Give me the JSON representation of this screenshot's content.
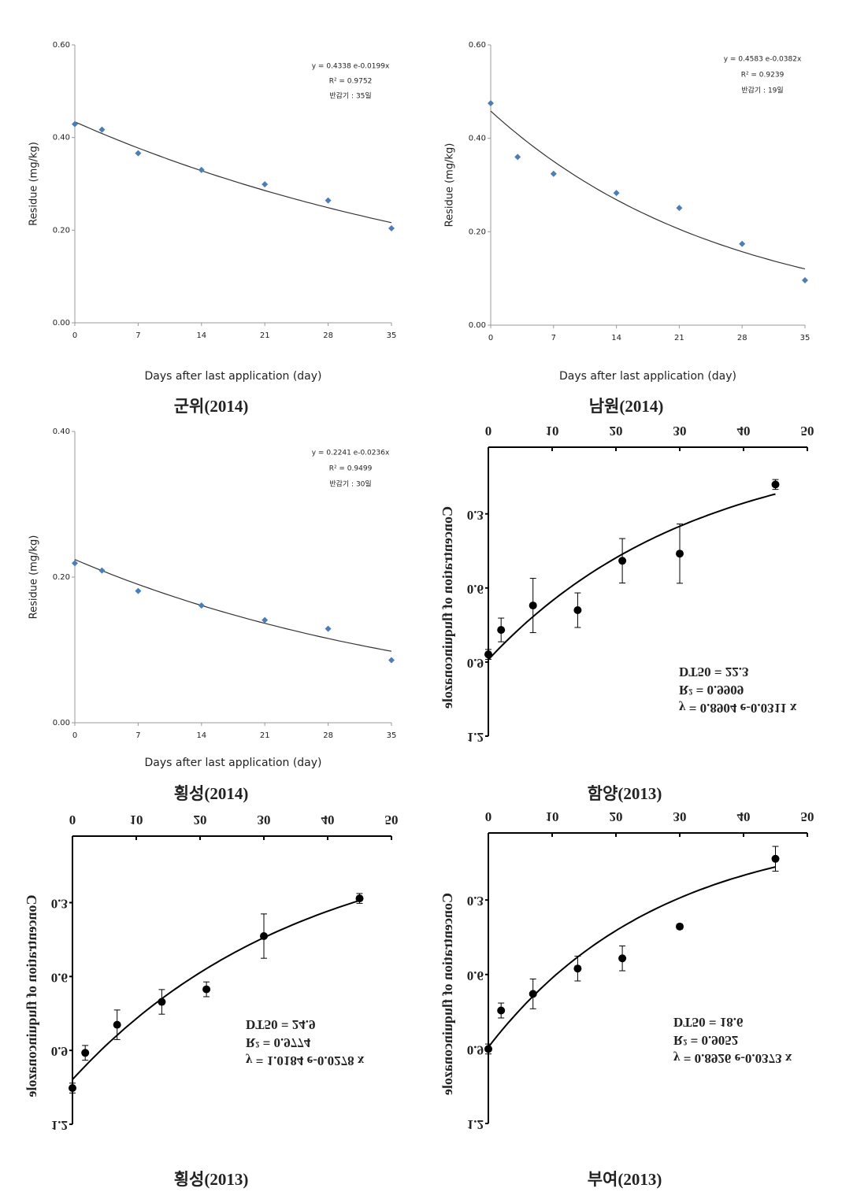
{
  "chart_data": [
    {
      "type": "scatter",
      "caption": "군위(2014)",
      "ylabel": "Residue (mg/kg)",
      "xlabel": "Days after last application (day)",
      "x": [
        0,
        3,
        7,
        14,
        21,
        28,
        35
      ],
      "values": [
        0.429,
        0.417,
        0.366,
        0.33,
        0.299,
        0.264,
        0.204
      ],
      "xlim": [
        0,
        35
      ],
      "ylim": [
        0,
        0.6
      ],
      "xticks": [
        0,
        7,
        14,
        21,
        28,
        35
      ],
      "yticks": [
        {
          "value": 0,
          "label": "0.00"
        },
        {
          "value": 0.2,
          "label": "0.20"
        },
        {
          "value": 0.4,
          "label": "0.40"
        },
        {
          "value": 0.6,
          "label": "0.60"
        }
      ],
      "marker": "diamond",
      "color": "#4a7ebb",
      "fit": {
        "a": 0.4338,
        "b": -0.0199
      },
      "annotations": [
        "y = 0.4338 e-0.0199x",
        "R² = 0.9752",
        "반감기 : 35일"
      ]
    },
    {
      "type": "scatter",
      "caption": "남원(2014)",
      "ylabel": "Residue (mg/kg)",
      "xlabel": "Days after last application (day)",
      "x": [
        0,
        3,
        7,
        14,
        21,
        28,
        35
      ],
      "values": [
        0.475,
        0.36,
        0.324,
        0.283,
        0.251,
        0.174,
        0.096
      ],
      "xlim": [
        0,
        35
      ],
      "ylim": [
        0,
        0.6
      ],
      "xticks": [
        0,
        7,
        14,
        21,
        28,
        35
      ],
      "yticks": [
        {
          "value": 0,
          "label": "0.00"
        },
        {
          "value": 0.2,
          "label": "0.20"
        },
        {
          "value": 0.4,
          "label": "0.40"
        },
        {
          "value": 0.6,
          "label": "0.60"
        }
      ],
      "marker": "diamond",
      "color": "#4a7ebb",
      "fit": {
        "a": 0.4583,
        "b": -0.0382
      },
      "annotations": [
        "y = 0.4583 e-0.0382x",
        "R² = 0.9239",
        "반감기 : 19일"
      ]
    },
    {
      "type": "scatter",
      "caption": "횡성(2014)",
      "ylabel": "Residue (mg/kg)",
      "xlabel": "Days after last application (day)",
      "x": [
        0,
        3,
        7,
        14,
        21,
        28,
        35
      ],
      "values": [
        0.219,
        0.209,
        0.181,
        0.161,
        0.141,
        0.129,
        0.086
      ],
      "xlim": [
        0,
        35
      ],
      "ylim": [
        0,
        0.4
      ],
      "xticks": [
        0,
        7,
        14,
        21,
        28,
        35
      ],
      "yticks": [
        {
          "value": 0,
          "label": "0.00"
        },
        {
          "value": 0.2,
          "label": "0.20"
        },
        {
          "value": 0.4,
          "label": "0.40"
        }
      ],
      "marker": "diamond",
      "color": "#4a7ebb",
      "fit": {
        "a": 0.2241,
        "b": -0.0236
      },
      "annotations": [
        "y = 0.2241 e-0.0236x",
        "R² = 0.9499",
        "반감기 : 30일"
      ]
    },
    {
      "type": "scatter",
      "caption": "함양(2013)",
      "ylabel": "Concentration of fluquinconazole",
      "x": [
        0,
        2,
        7,
        14,
        21,
        30,
        45
      ],
      "values": [
        0.869,
        0.77,
        0.671,
        0.69,
        0.49,
        0.461,
        0.181
      ],
      "errors": [
        0.02,
        0.048,
        0.11,
        0.07,
        0.09,
        0.12,
        0.02
      ],
      "xlim": [
        0,
        50
      ],
      "ylim": [
        0.03,
        1.2
      ],
      "xticks": [
        0,
        10,
        20,
        30,
        40,
        50
      ],
      "yticks": [
        0.3,
        0.6,
        0.9,
        1.2
      ],
      "inverted_y": true,
      "x_axis_position": "top",
      "text_flipped": true,
      "marker": "circle",
      "color": "#000000",
      "fit": {
        "a": 0.8904,
        "b": -0.0311
      },
      "annotations": [
        "DT50 = 22.3",
        "R² = 0.9909",
        "y = 0.8904 e-0.0311 x"
      ]
    },
    {
      "type": "scatter",
      "caption": "횡성(2013)",
      "ylabel": "Concentration of fluquinconazole",
      "x": [
        0,
        2,
        7,
        14,
        21,
        30,
        45
      ],
      "values": [
        1.053,
        0.91,
        0.796,
        0.703,
        0.652,
        0.436,
        0.283
      ],
      "errors": [
        0.02,
        0.03,
        0.06,
        0.05,
        0.03,
        0.09,
        0.02
      ],
      "xlim": [
        0,
        50
      ],
      "ylim": [
        0.03,
        1.2
      ],
      "xticks": [
        0,
        10,
        20,
        30,
        40,
        50
      ],
      "yticks": [
        0.3,
        0.6,
        0.9,
        1.2
      ],
      "inverted_y": true,
      "x_axis_position": "top",
      "text_flipped": true,
      "marker": "circle",
      "color": "#000000",
      "fit": {
        "a": 1.0184,
        "b": -0.0278
      },
      "annotations": [
        "DT50 = 24.9",
        "R² = 0.9774",
        "y = 1.0184 e-0.0278 x"
      ]
    },
    {
      "type": "scatter",
      "caption": "부여(2013)",
      "ylabel": "Concentration of fluquinconazole",
      "x": [
        0,
        2,
        7,
        14,
        21,
        30,
        45
      ],
      "values": [
        0.9,
        0.745,
        0.678,
        0.576,
        0.535,
        0.407,
        0.134
      ],
      "errors": [
        0.02,
        0.03,
        0.06,
        0.05,
        0.05,
        0.01,
        0.05
      ],
      "xlim": [
        0,
        50
      ],
      "ylim": [
        0.03,
        1.2
      ],
      "xticks": [
        0,
        10,
        20,
        30,
        40,
        50
      ],
      "yticks": [
        0.3,
        0.6,
        0.9,
        1.2
      ],
      "inverted_y": true,
      "x_axis_position": "top",
      "text_flipped": true,
      "marker": "circle",
      "color": "#000000",
      "fit": {
        "a": 0.8926,
        "b": -0.0373
      },
      "annotations": [
        "DT50 = 18.6",
        "R² = 0.9052",
        "y = 0.8926 e-0.0373 x"
      ]
    }
  ]
}
